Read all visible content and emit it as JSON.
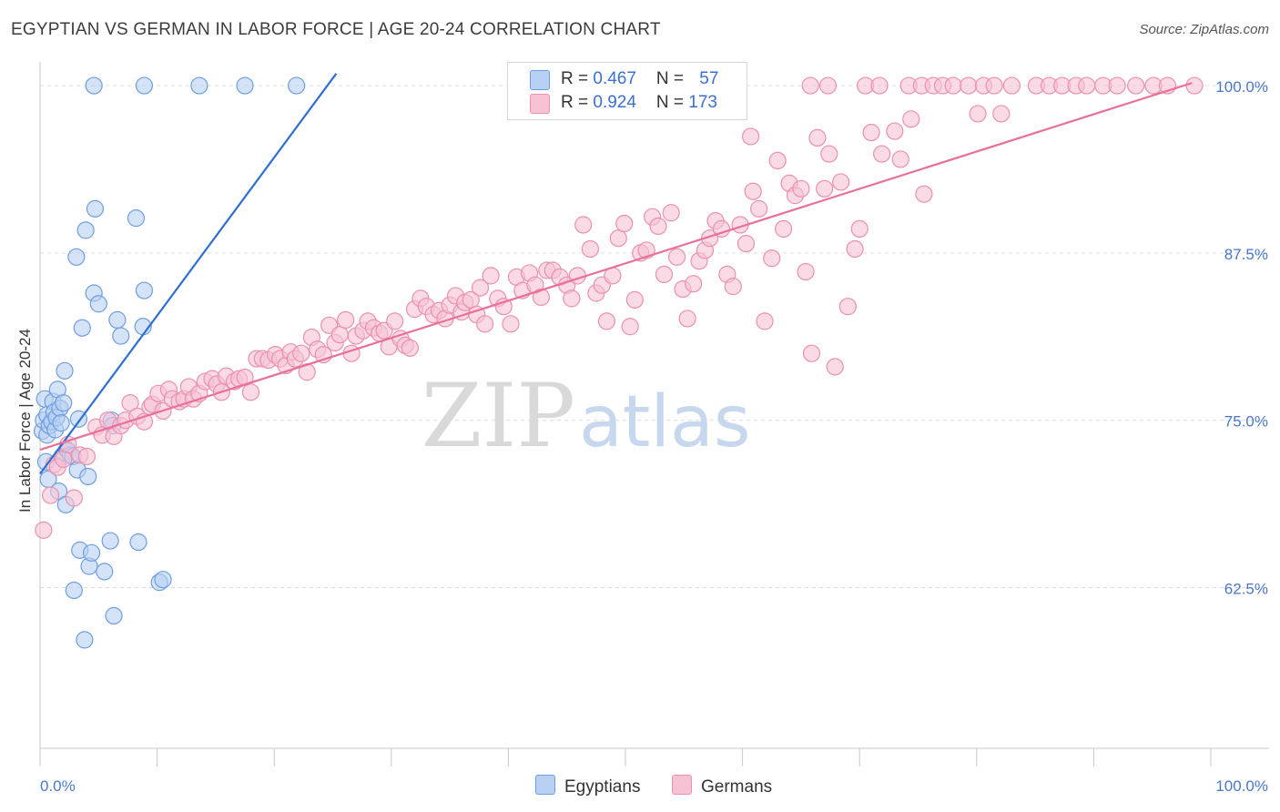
{
  "title": "EGYPTIAN VS GERMAN IN LABOR FORCE | AGE 20-24 CORRELATION CHART",
  "source": "Source: ZipAtlas.com",
  "watermark": {
    "zip": "ZIP",
    "atlas": "atlas"
  },
  "colors": {
    "blue_fill": "#b8d0f2",
    "blue_stroke": "#6f9ee0",
    "blue_line": "#2f6fd0",
    "pink_fill": "#f7c3d4",
    "pink_stroke": "#ec8fb0",
    "pink_line": "#e8709a",
    "tick_label": "#4a78c8",
    "grid": "#dcdcdc"
  },
  "legend": {
    "series": [
      {
        "r_label": "R = ",
        "r_value": "0.467",
        "n_label": "N = ",
        "n_value": "57"
      },
      {
        "r_label": "R = ",
        "r_value": "0.924",
        "n_label": "N = ",
        "n_value": "173"
      }
    ]
  },
  "bottom_legend": [
    "Egyptians",
    "Germans"
  ],
  "chart_data": {
    "type": "scatter",
    "title": "EGYPTIAN VS GERMAN IN LABOR FORCE | AGE 20-24 CORRELATION CHART",
    "xlabel": "",
    "ylabel": "In Labor Force | Age 20-24",
    "xlim": [
      0,
      100
    ],
    "ylim": [
      50.5,
      101.5
    ],
    "x_tick_labels": [
      "0.0%",
      "100.0%"
    ],
    "y_ticks": [
      62.5,
      75.0,
      87.5,
      100.0
    ],
    "y_tick_labels": [
      "62.5%",
      "75.0%",
      "87.5%",
      "100.0%"
    ],
    "grid": true,
    "series": [
      {
        "name": "Egyptians",
        "r": 0.467,
        "n": 57,
        "trend": {
          "x": [
            0,
            25.3
          ],
          "y": [
            71.0,
            100.9
          ]
        },
        "points": [
          [
            0.2,
            74.2
          ],
          [
            0.3,
            75.0
          ],
          [
            0.4,
            76.6
          ],
          [
            0.5,
            71.9
          ],
          [
            0.6,
            75.4
          ],
          [
            0.6,
            73.9
          ],
          [
            0.7,
            70.6
          ],
          [
            0.8,
            74.6
          ],
          [
            1.0,
            74.9
          ],
          [
            1.1,
            76.4
          ],
          [
            1.2,
            75.6
          ],
          [
            1.3,
            74.3
          ],
          [
            1.4,
            75.2
          ],
          [
            1.5,
            77.3
          ],
          [
            1.6,
            69.7
          ],
          [
            1.7,
            75.9
          ],
          [
            1.8,
            74.8
          ],
          [
            1.9,
            72.3
          ],
          [
            2.0,
            76.3
          ],
          [
            2.1,
            78.7
          ],
          [
            2.2,
            68.7
          ],
          [
            2.3,
            72.8
          ],
          [
            2.4,
            72.7
          ],
          [
            2.6,
            72.4
          ],
          [
            2.8,
            72.3
          ],
          [
            2.9,
            62.3
          ],
          [
            3.1,
            87.2
          ],
          [
            3.2,
            71.3
          ],
          [
            3.3,
            75.1
          ],
          [
            3.4,
            65.3
          ],
          [
            3.6,
            81.9
          ],
          [
            3.8,
            58.6
          ],
          [
            3.9,
            89.2
          ],
          [
            4.1,
            70.8
          ],
          [
            4.2,
            64.1
          ],
          [
            4.4,
            65.1
          ],
          [
            4.6,
            84.5
          ],
          [
            4.7,
            90.8
          ],
          [
            5.0,
            83.7
          ],
          [
            5.5,
            63.7
          ],
          [
            6.0,
            66.0
          ],
          [
            6.1,
            75.0
          ],
          [
            6.3,
            60.4
          ],
          [
            6.6,
            82.5
          ],
          [
            6.9,
            81.3
          ],
          [
            8.2,
            90.1
          ],
          [
            8.4,
            65.9
          ],
          [
            8.8,
            82.0
          ],
          [
            8.9,
            84.7
          ],
          [
            10.2,
            62.9
          ],
          [
            10.5,
            63.1
          ],
          [
            4.6,
            100.0
          ],
          [
            8.9,
            100.0
          ],
          [
            13.6,
            100.0
          ],
          [
            17.5,
            100.0
          ],
          [
            21.9,
            100.0
          ],
          [
            6.2,
            74.6
          ]
        ]
      },
      {
        "name": "Germans",
        "r": 0.924,
        "n": 173,
        "trend": {
          "x": [
            0,
            98.4
          ],
          "y": [
            72.8,
            100.2
          ]
        },
        "points": [
          [
            0.3,
            66.8
          ],
          [
            0.9,
            69.4
          ],
          [
            1.2,
            71.7
          ],
          [
            1.5,
            71.5
          ],
          [
            2.0,
            72.1
          ],
          [
            2.4,
            73.2
          ],
          [
            2.9,
            69.2
          ],
          [
            3.4,
            72.4
          ],
          [
            4.0,
            72.3
          ],
          [
            4.8,
            74.5
          ],
          [
            5.3,
            73.9
          ],
          [
            5.8,
            75.0
          ],
          [
            6.3,
            73.8
          ],
          [
            6.9,
            74.6
          ],
          [
            7.3,
            75.0
          ],
          [
            7.7,
            76.3
          ],
          [
            8.3,
            75.3
          ],
          [
            8.9,
            74.9
          ],
          [
            9.4,
            76.0
          ],
          [
            9.6,
            76.2
          ],
          [
            10.1,
            77.0
          ],
          [
            10.5,
            75.7
          ],
          [
            11.0,
            77.3
          ],
          [
            11.3,
            76.6
          ],
          [
            11.9,
            76.4
          ],
          [
            12.3,
            76.6
          ],
          [
            12.7,
            77.5
          ],
          [
            13.1,
            76.6
          ],
          [
            13.6,
            77.0
          ],
          [
            14.1,
            77.9
          ],
          [
            14.7,
            78.1
          ],
          [
            15.1,
            77.7
          ],
          [
            15.5,
            77.1
          ],
          [
            15.9,
            78.3
          ],
          [
            16.6,
            77.9
          ],
          [
            17.0,
            78.1
          ],
          [
            17.5,
            78.2
          ],
          [
            18.0,
            77.1
          ],
          [
            18.5,
            79.6
          ],
          [
            19.0,
            79.6
          ],
          [
            19.5,
            79.5
          ],
          [
            20.1,
            79.9
          ],
          [
            20.5,
            79.6
          ],
          [
            21.0,
            79.1
          ],
          [
            21.4,
            80.1
          ],
          [
            21.8,
            79.6
          ],
          [
            22.3,
            80.0
          ],
          [
            22.8,
            78.6
          ],
          [
            23.2,
            81.2
          ],
          [
            23.7,
            80.3
          ],
          [
            24.2,
            79.9
          ],
          [
            24.7,
            82.1
          ],
          [
            25.2,
            80.8
          ],
          [
            25.6,
            81.4
          ],
          [
            26.1,
            82.5
          ],
          [
            26.6,
            80.0
          ],
          [
            27.0,
            81.3
          ],
          [
            27.6,
            81.7
          ],
          [
            28.0,
            82.4
          ],
          [
            28.5,
            81.9
          ],
          [
            29.0,
            81.5
          ],
          [
            29.4,
            81.7
          ],
          [
            29.8,
            80.5
          ],
          [
            30.3,
            82.4
          ],
          [
            30.8,
            81.1
          ],
          [
            31.2,
            80.6
          ],
          [
            31.6,
            80.4
          ],
          [
            32.0,
            83.3
          ],
          [
            32.5,
            84.1
          ],
          [
            33.0,
            83.5
          ],
          [
            33.6,
            82.9
          ],
          [
            34.1,
            83.2
          ],
          [
            34.6,
            82.6
          ],
          [
            35.0,
            83.6
          ],
          [
            35.5,
            84.3
          ],
          [
            36.0,
            83.1
          ],
          [
            36.3,
            83.8
          ],
          [
            36.8,
            84.0
          ],
          [
            37.3,
            82.9
          ],
          [
            37.6,
            84.9
          ],
          [
            38.0,
            82.2
          ],
          [
            38.5,
            85.8
          ],
          [
            39.1,
            84.1
          ],
          [
            39.6,
            83.5
          ],
          [
            40.2,
            82.2
          ],
          [
            40.7,
            85.7
          ],
          [
            41.2,
            84.7
          ],
          [
            41.8,
            86.0
          ],
          [
            42.3,
            85.1
          ],
          [
            42.8,
            84.2
          ],
          [
            43.3,
            86.2
          ],
          [
            43.8,
            86.2
          ],
          [
            44.4,
            85.7
          ],
          [
            45.0,
            85.1
          ],
          [
            45.4,
            84.1
          ],
          [
            45.9,
            85.8
          ],
          [
            46.4,
            89.6
          ],
          [
            47.0,
            87.8
          ],
          [
            47.5,
            84.5
          ],
          [
            48.0,
            85.1
          ],
          [
            48.4,
            82.4
          ],
          [
            48.9,
            85.8
          ],
          [
            49.4,
            88.6
          ],
          [
            49.9,
            89.7
          ],
          [
            50.4,
            82.0
          ],
          [
            50.8,
            84.0
          ],
          [
            51.3,
            87.5
          ],
          [
            51.8,
            87.7
          ],
          [
            52.3,
            90.2
          ],
          [
            52.8,
            89.5
          ],
          [
            53.3,
            85.9
          ],
          [
            53.9,
            90.5
          ],
          [
            54.4,
            87.2
          ],
          [
            54.9,
            84.8
          ],
          [
            55.3,
            82.6
          ],
          [
            55.8,
            85.2
          ],
          [
            56.3,
            86.9
          ],
          [
            56.8,
            87.7
          ],
          [
            57.2,
            88.6
          ],
          [
            57.7,
            89.9
          ],
          [
            58.2,
            89.3
          ],
          [
            58.7,
            85.9
          ],
          [
            59.2,
            85.0
          ],
          [
            59.8,
            89.6
          ],
          [
            60.3,
            88.2
          ],
          [
            60.9,
            92.1
          ],
          [
            61.4,
            90.8
          ],
          [
            61.9,
            82.4
          ],
          [
            62.5,
            87.1
          ],
          [
            63.0,
            94.4
          ],
          [
            63.5,
            89.3
          ],
          [
            64.0,
            92.7
          ],
          [
            64.5,
            91.8
          ],
          [
            65.0,
            92.3
          ],
          [
            65.4,
            86.1
          ],
          [
            65.9,
            80.0
          ],
          [
            66.4,
            96.1
          ],
          [
            67.0,
            92.3
          ],
          [
            67.4,
            94.9
          ],
          [
            67.9,
            79.0
          ],
          [
            68.4,
            92.8
          ],
          [
            69.0,
            83.5
          ],
          [
            69.6,
            87.8
          ],
          [
            70.0,
            89.3
          ],
          [
            71.0,
            96.5
          ],
          [
            71.9,
            94.9
          ],
          [
            73.0,
            96.6
          ],
          [
            73.5,
            94.5
          ],
          [
            74.4,
            97.5
          ],
          [
            75.5,
            91.9
          ],
          [
            80.1,
            97.9
          ],
          [
            82.1,
            97.9
          ],
          [
            65.8,
            100.0
          ],
          [
            67.3,
            100.0
          ],
          [
            70.5,
            100.0
          ],
          [
            71.7,
            100.0
          ],
          [
            74.2,
            100.0
          ],
          [
            75.3,
            100.0
          ],
          [
            76.3,
            100.0
          ],
          [
            77.1,
            100.0
          ],
          [
            78.0,
            100.0
          ],
          [
            79.3,
            100.0
          ],
          [
            80.6,
            100.0
          ],
          [
            81.5,
            100.0
          ],
          [
            83.0,
            100.0
          ],
          [
            85.1,
            100.0
          ],
          [
            86.2,
            100.0
          ],
          [
            87.3,
            100.0
          ],
          [
            88.5,
            100.0
          ],
          [
            89.4,
            100.0
          ],
          [
            90.8,
            100.0
          ],
          [
            92.0,
            100.0
          ],
          [
            93.6,
            100.0
          ],
          [
            95.1,
            100.0
          ],
          [
            96.3,
            100.0
          ],
          [
            98.6,
            100.0
          ],
          [
            60.7,
            96.2
          ]
        ]
      }
    ]
  }
}
